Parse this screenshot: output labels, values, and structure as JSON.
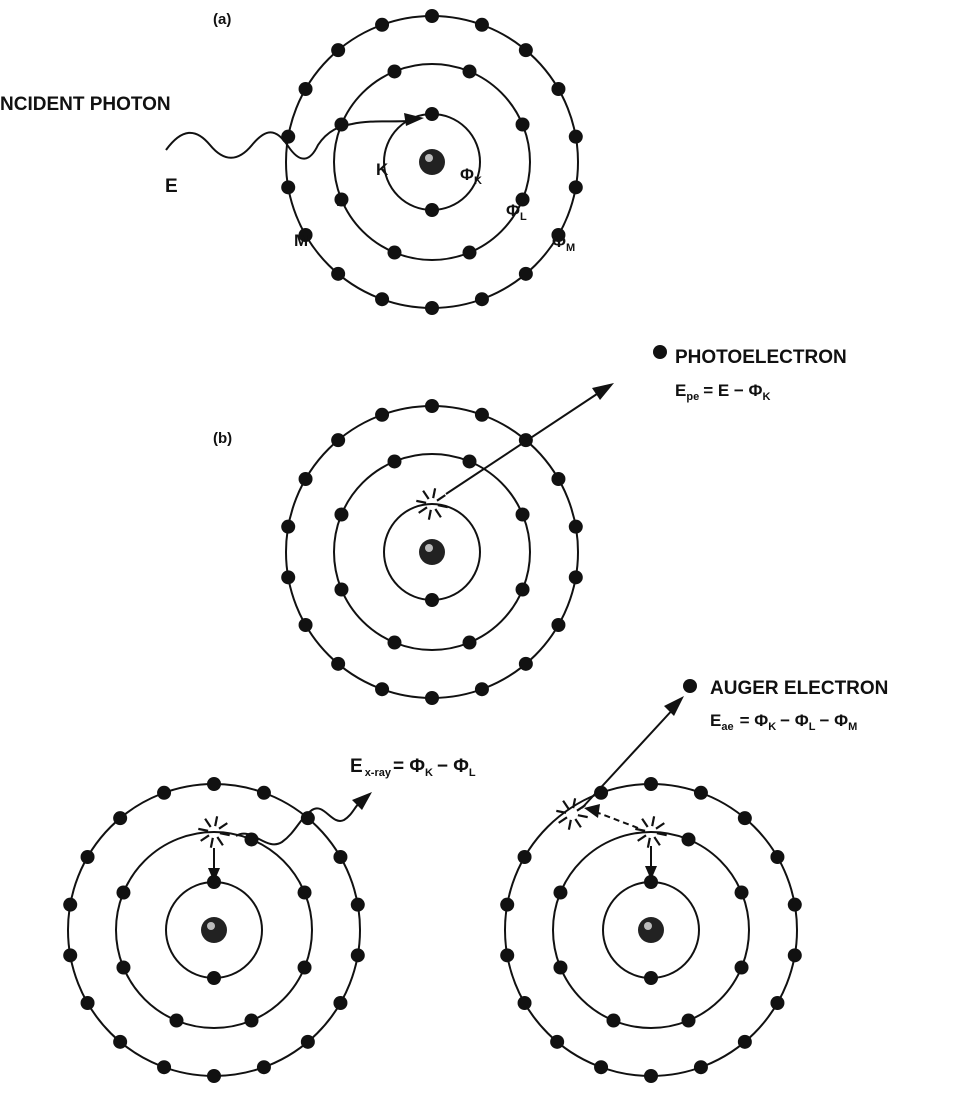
{
  "labels": {
    "panel_a": "(a)",
    "panel_b": "(b)",
    "incident_photon": "NCIDENT PHOTON",
    "energy": "E",
    "shell_k": "K",
    "shell_l": "L",
    "shell_m": "M",
    "phi": "Φ",
    "sub_k": "K",
    "sub_l": "L",
    "sub_m": "M",
    "photoelectron": "PHOTOELECTRON",
    "auger_electron": "AUGER ELECTRON",
    "e_pe": "E",
    "e_pe_sub": "pe",
    "e_pe_rhs": "= E − Φ",
    "e_ae": "E",
    "e_ae_sub": "ae",
    "e_ae_rhs1": "= Φ",
    "e_ae_rhs2": "− Φ",
    "e_ae_rhs3": "− Φ",
    "e_xray": "E",
    "e_xray_sub": "x-ray",
    "e_xray_rhs1": "= Φ",
    "e_xray_rhs2": "− Φ"
  },
  "atom": {
    "shells": [
      "K",
      "L",
      "M"
    ],
    "electrons_per_shell": [
      2,
      8,
      18
    ]
  },
  "colors": {
    "ink": "#111111",
    "background": "#ffffff"
  }
}
